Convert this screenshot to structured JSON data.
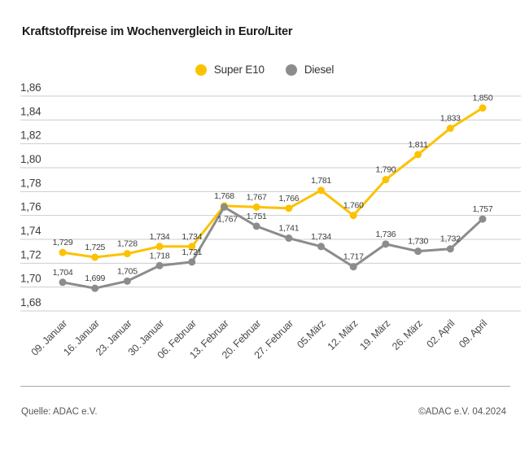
{
  "chart_data": {
    "type": "line",
    "title": "Kraftstoffpreise im Wochenvergleich in Euro/Liter",
    "categories": [
      "09. Januar",
      "16. Januar",
      "23. Januar",
      "30. Januar",
      "06. Februar",
      "13. Februar",
      "20. Februar",
      "27. Februar",
      "05.März",
      "12. März",
      "19. März",
      "26. März",
      "02. April",
      "09. April"
    ],
    "series": [
      {
        "name": "Super E10",
        "color": "#fcc200",
        "values": [
          1.729,
          1.725,
          1.728,
          1.734,
          1.734,
          1.768,
          1.767,
          1.766,
          1.781,
          1.76,
          1.79,
          1.811,
          1.833,
          1.85
        ]
      },
      {
        "name": "Diesel",
        "color": "#8c8c8c",
        "values": [
          1.704,
          1.699,
          1.705,
          1.718,
          1.721,
          1.767,
          1.751,
          1.741,
          1.734,
          1.717,
          1.736,
          1.73,
          1.732,
          1.757
        ]
      }
    ],
    "ylim": [
      1.68,
      1.86
    ],
    "ytick_labels": [
      "1,86",
      "1,84",
      "1,82",
      "1,80",
      "1,78",
      "1,76",
      "1,74",
      "1,72",
      "1,70",
      "1,68"
    ],
    "unit": "Euro/Liter",
    "grid": true,
    "legend_position": "top-center",
    "colors": {
      "grid": "#cdcdcd",
      "tick_text": "#3d3d3d",
      "data_label": "#3d3d3d"
    }
  },
  "footer": {
    "source": "Quelle: ADAC e.V.",
    "copyright": "©ADAC e.V. 04.2024"
  }
}
